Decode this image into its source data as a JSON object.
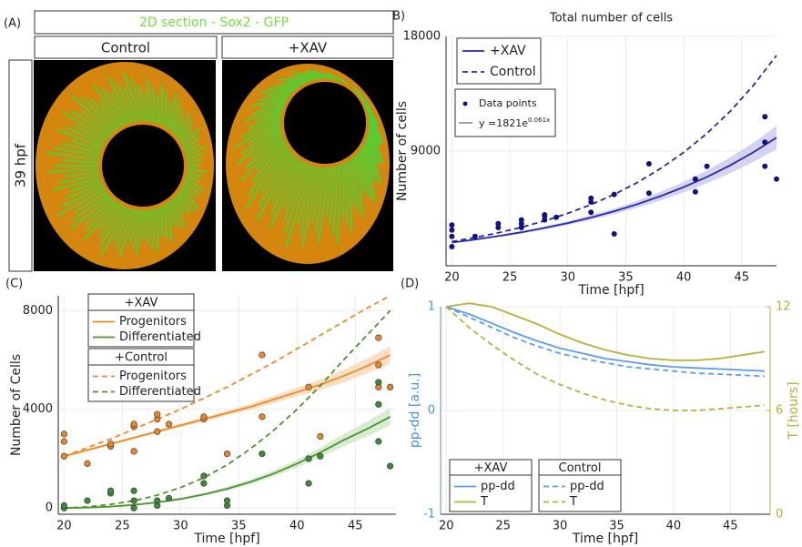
{
  "panel_labels": [
    "(A)",
    "(B)",
    "(C)",
    "(D)"
  ],
  "panel_a": {
    "title": "2D section - Sox2 - GFP",
    "columns": [
      "Control",
      "+XAV"
    ],
    "row_label": "39 hpf"
  },
  "chart_data": [
    {
      "type": "line",
      "title": "Total number of cells",
      "x_label": "Time [hpf]",
      "y_label": "Number of cells",
      "xlim": [
        19.5,
        48
      ],
      "ylim": [
        0,
        18000
      ],
      "xticks": [
        20,
        25,
        30,
        35,
        40,
        45
      ],
      "yticks": [
        9000,
        18000
      ],
      "grid": true,
      "x": [
        20,
        22,
        24,
        26,
        28,
        30,
        32,
        34,
        36,
        38,
        40,
        42,
        44,
        46,
        48
      ],
      "series": [
        {
          "name": "+XAV",
          "color": "#2828a8",
          "dash": false,
          "values": [
            1821,
            2057,
            2325,
            2627,
            2968,
            3353,
            3788,
            4280,
            4836,
            5463,
            6173,
            6974,
            7880,
            8902,
            10058
          ],
          "band": {
            "color": "#c9c9ef",
            "lower": [
              1780,
              2000,
              2250,
              2530,
              2850,
              3210,
              3610,
              4060,
              4560,
              5130,
              5760,
              6470,
              7260,
              8150,
              9150
            ],
            "upper": [
              1860,
              2110,
              2400,
              2720,
              3090,
              3500,
              3970,
              4500,
              5110,
              5800,
              6590,
              7480,
              8500,
              9650,
              10970
            ]
          }
        },
        {
          "name": "Control",
          "color": "#2828a8",
          "dash": true,
          "values": [
            1900,
            2217,
            2587,
            3019,
            3523,
            4112,
            4798,
            5600,
            6535,
            7626,
            8900,
            10386,
            12121,
            14145,
            16507
          ]
        }
      ],
      "points": [
        {
          "name": "Data points",
          "color": "#12127a",
          "x": [
            20,
            20,
            20,
            20,
            22,
            24,
            24,
            26,
            26,
            26,
            28,
            28,
            28,
            29,
            32,
            32,
            32,
            34,
            34,
            37,
            37,
            41,
            41,
            42,
            47,
            47,
            47,
            48
          ],
          "values": [
            1500,
            2300,
            2800,
            3200,
            2300,
            3000,
            3300,
            3000,
            3300,
            3600,
            3600,
            3900,
            4000,
            3800,
            4200,
            5000,
            5300,
            2500,
            5600,
            5700,
            8000,
            5800,
            6800,
            7800,
            11700,
            9700,
            7800,
            6800
          ]
        }
      ],
      "fit": {
        "label": "y =1821e",
        "exponent": "0.061x",
        "color": "#7c7caa"
      }
    },
    {
      "type": "line",
      "x_label": "Time [hpf]",
      "y_label": "Number of Cells",
      "xlim": [
        19.5,
        48.5
      ],
      "ylim": [
        -250,
        8600
      ],
      "xticks": [
        20,
        25,
        30,
        35,
        40,
        45
      ],
      "yticks": [
        0,
        4000,
        8000
      ],
      "grid": true,
      "legend_titles": [
        "+XAV",
        "+Control"
      ],
      "x": [
        20,
        22,
        24,
        26,
        28,
        30,
        32,
        34,
        36,
        38,
        40,
        42,
        44,
        46,
        48
      ],
      "series": [
        {
          "name": "Progenitors",
          "color": "#ef8a26",
          "dash": false,
          "values": [
            2100,
            2350,
            2600,
            2850,
            3100,
            3350,
            3600,
            3850,
            4100,
            4400,
            4700,
            5000,
            5350,
            5750,
            6200
          ],
          "band": {
            "color": "#f8d7b8",
            "lower": [
              2050,
              2300,
              2550,
              2800,
              3040,
              3280,
              3520,
              3750,
              3980,
              4250,
              4520,
              4780,
              5090,
              5450,
              5850
            ],
            "upper": [
              2150,
              2400,
              2650,
              2900,
              3160,
              3420,
              3680,
              3950,
              4220,
              4550,
              4880,
              5220,
              5610,
              6050,
              6550
            ]
          }
        },
        {
          "name": "Differentiated",
          "color": "#4a952c",
          "dash": false,
          "values": [
            0,
            20,
            60,
            130,
            230,
            370,
            550,
            780,
            1060,
            1400,
            1800,
            2250,
            2750,
            3200,
            3700
          ],
          "band": {
            "color": "#cfe6c8",
            "lower": [
              0,
              10,
              40,
              100,
              190,
              320,
              490,
              700,
              960,
              1280,
              1640,
              2050,
              2500,
              2900,
              3350
            ],
            "upper": [
              0,
              30,
              80,
              160,
              270,
              420,
              610,
              860,
              1160,
              1520,
              1960,
              2450,
              3000,
              3500,
              4050
            ]
          }
        },
        {
          "name": "Progenitors",
          "color": "#ef8a26",
          "dash": true,
          "values": [
            2100,
            2450,
            2800,
            3200,
            3600,
            4000,
            4450,
            4900,
            5400,
            5900,
            6450,
            7000,
            7550,
            8100,
            8600
          ]
        },
        {
          "name": "Differentiated",
          "color": "#4a952c",
          "dash": true,
          "values": [
            0,
            50,
            150,
            300,
            520,
            830,
            1230,
            1750,
            2400,
            3150,
            4000,
            4950,
            6000,
            7000,
            8000
          ]
        }
      ],
      "points": [
        {
          "color": "#e8872a",
          "x": [
            20,
            20,
            20,
            22,
            24,
            24,
            26,
            26,
            26,
            28,
            28,
            28,
            29,
            32,
            32,
            34,
            37,
            37,
            41,
            42,
            47,
            47,
            47,
            48
          ],
          "values": [
            2100,
            2700,
            3000,
            1800,
            2500,
            2600,
            2300,
            3300,
            3400,
            3600,
            3800,
            3100,
            3400,
            3600,
            3700,
            2200,
            3700,
            6200,
            4900,
            2900,
            6900,
            5800,
            4900,
            4900
          ]
        },
        {
          "color": "#3f8a3a",
          "x": [
            20,
            20,
            22,
            24,
            24,
            26,
            26,
            26,
            28,
            28,
            29,
            32,
            32,
            34,
            34,
            37,
            41,
            41,
            42,
            47,
            47,
            47,
            48
          ],
          "values": [
            0,
            100,
            300,
            600,
            700,
            0,
            300,
            700,
            100,
            300,
            400,
            1000,
            1300,
            100,
            300,
            2200,
            1000,
            2000,
            2100,
            5100,
            4200,
            2700,
            1700
          ]
        }
      ]
    },
    {
      "type": "line",
      "x_label": "Time [hpf]",
      "y_label": "pp-dd [a.u.]",
      "y2_label": "T [hours]",
      "y_color": "#4a8fe0",
      "y2_color": "#b5b23a",
      "xlim": [
        19.5,
        48.5
      ],
      "ylim": [
        -1,
        1
      ],
      "y2lim": [
        0,
        12
      ],
      "xticks": [
        20,
        25,
        30,
        35,
        40,
        45
      ],
      "yticks": [
        -1,
        0,
        1
      ],
      "y2ticks": [
        0,
        6,
        12
      ],
      "grid": true,
      "legend_titles": [
        "+XAV",
        "Control"
      ],
      "x": [
        20,
        22,
        24,
        26,
        28,
        30,
        32,
        34,
        36,
        38,
        40,
        42,
        44,
        46,
        48
      ],
      "series": [
        {
          "name": "pp-dd",
          "color": "#5a9ee8",
          "dash": false,
          "values": [
            1,
            0.93,
            0.84,
            0.75,
            0.67,
            0.6,
            0.55,
            0.5,
            0.47,
            0.44,
            0.42,
            0.41,
            0.4,
            0.39,
            0.38
          ]
        },
        {
          "name": "T",
          "color": "#b5b23a",
          "dash": false,
          "axis": "y2",
          "values": [
            12,
            12.2,
            12,
            11.5,
            11,
            10.4,
            9.9,
            9.5,
            9.2,
            9,
            8.9,
            8.9,
            9,
            9.2,
            9.4
          ]
        },
        {
          "name": "pp-dd",
          "color": "#5a9ee8",
          "dash": true,
          "values": [
            1,
            0.9,
            0.8,
            0.7,
            0.62,
            0.55,
            0.5,
            0.46,
            0.42,
            0.4,
            0.38,
            0.36,
            0.35,
            0.34,
            0.33
          ]
        },
        {
          "name": "T",
          "color": "#b5b23a",
          "dash": true,
          "axis": "y2",
          "values": [
            12,
            10.8,
            9.8,
            8.9,
            8.1,
            7.5,
            7,
            6.6,
            6.3,
            6.1,
            6,
            6,
            6.1,
            6.2,
            6.3
          ]
        }
      ]
    }
  ]
}
